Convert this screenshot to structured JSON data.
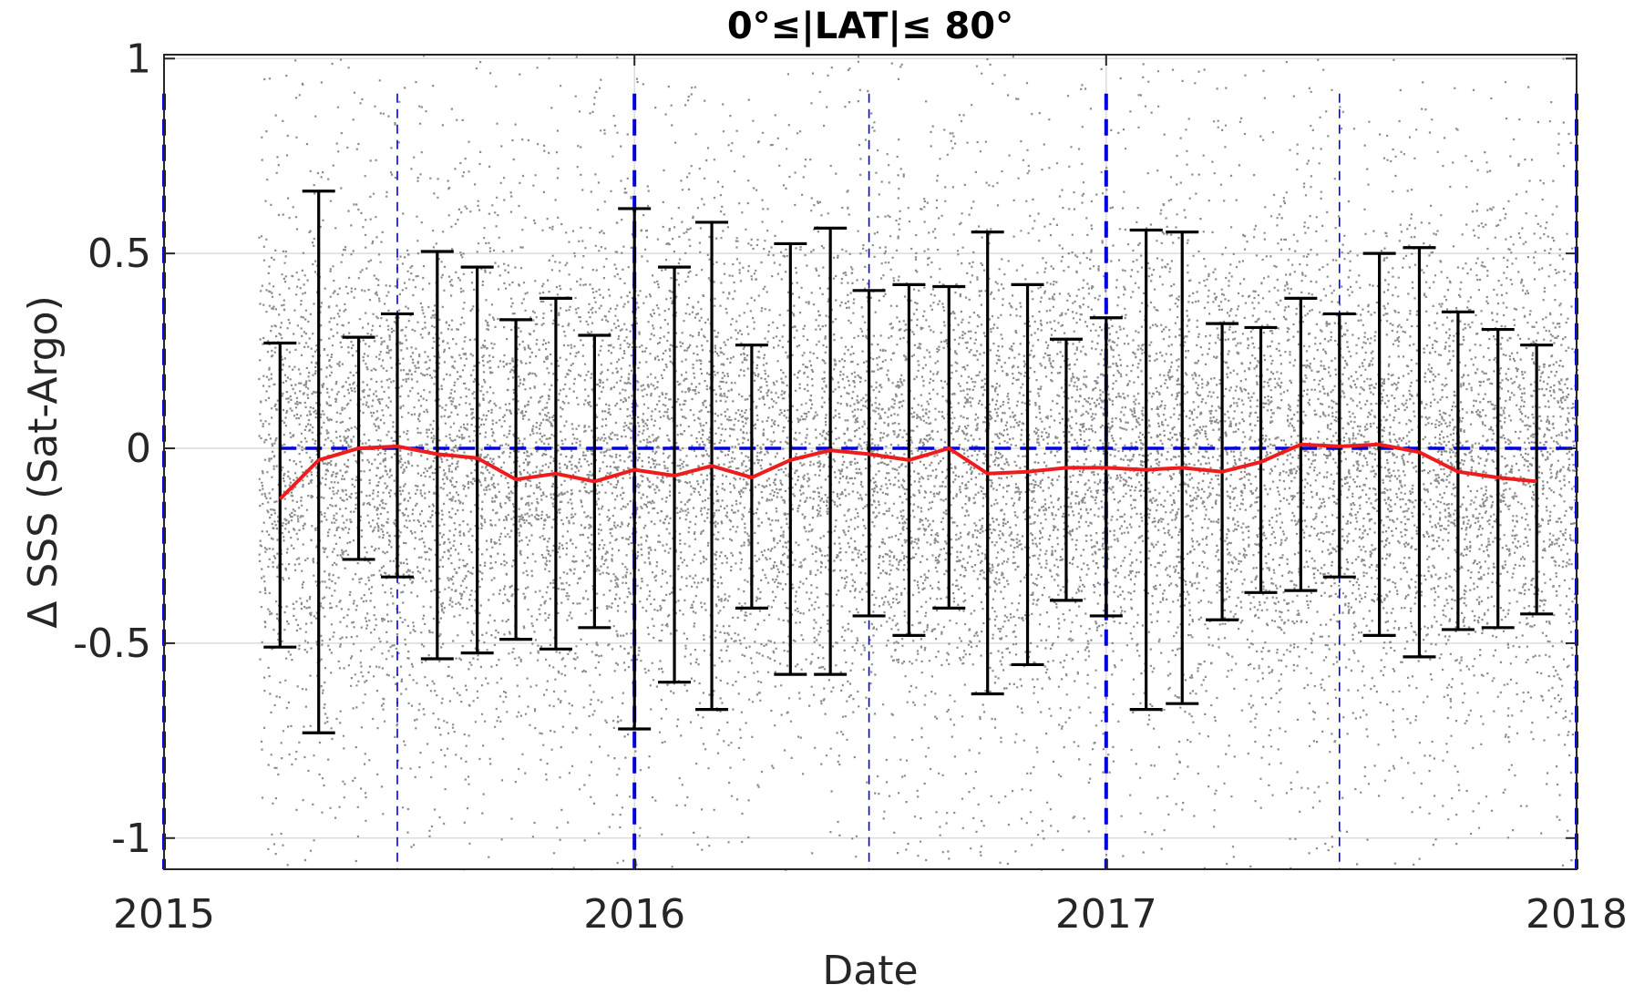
{
  "chart_data": {
    "type": "scatter",
    "title": "0°≤|LAT|≤ 80°",
    "xlabel": "Date",
    "ylabel": "Δ SSS (Sat-Argo)",
    "x_ticks": [
      "2015",
      "2016",
      "2017",
      "2018"
    ],
    "y_ticks": [
      "1",
      "0.5",
      "0",
      "-0.5",
      "-1"
    ],
    "y_tick_values": [
      1,
      0.5,
      0,
      -0.5,
      -1
    ],
    "xlim": [
      "2015-01-01",
      "2018-01-01"
    ],
    "ylim": [
      -1.08,
      1.01
    ],
    "grid": true,
    "scatter_x_range": [
      "2015-03-15",
      "2018-01-01"
    ],
    "scatter_color": "#808080",
    "mean_line_color": "#ee1c1c",
    "error_bar_color": "#000000",
    "reference_color": "#0000dd",
    "vertical_reference_lines": [
      {
        "x": "2015-01-01",
        "style": "thick-dash"
      },
      {
        "x": "2015-07-01",
        "style": "thin-dash"
      },
      {
        "x": "2016-01-01",
        "style": "thick-dash"
      },
      {
        "x": "2016-07-01",
        "style": "thin-dash"
      },
      {
        "x": "2017-01-01",
        "style": "thick-dash"
      },
      {
        "x": "2017-07-01",
        "style": "thin-dash"
      },
      {
        "x": "2018-01-01",
        "style": "thick-dash"
      }
    ],
    "horizontal_reference_line": {
      "y": 0,
      "from": "2015-04-01",
      "to": "2018-01-01"
    },
    "series": [
      {
        "type": "errorbar",
        "x": [
          "2015-04-01",
          "2015-05-01",
          "2015-06-01",
          "2015-07-01",
          "2015-08-01",
          "2015-09-01",
          "2015-10-01",
          "2015-11-01",
          "2015-12-01",
          "2016-01-01",
          "2016-02-01",
          "2016-03-01",
          "2016-04-01",
          "2016-05-01",
          "2016-06-01",
          "2016-07-01",
          "2016-08-01",
          "2016-09-01",
          "2016-10-01",
          "2016-11-01",
          "2016-12-01",
          "2017-01-01",
          "2017-02-01",
          "2017-03-01",
          "2017-04-01",
          "2017-05-01",
          "2017-06-01",
          "2017-07-01",
          "2017-08-01",
          "2017-09-01",
          "2017-10-01",
          "2017-11-01",
          "2017-12-01"
        ],
        "mean": [
          -0.13,
          -0.03,
          0.0,
          0.005,
          -0.015,
          -0.025,
          -0.08,
          -0.065,
          -0.085,
          -0.055,
          -0.07,
          -0.045,
          -0.075,
          -0.03,
          -0.005,
          -0.015,
          -0.03,
          0.0,
          -0.065,
          -0.06,
          -0.05,
          -0.05,
          -0.055,
          -0.05,
          -0.06,
          -0.035,
          0.01,
          0.005,
          0.01,
          -0.01,
          -0.06,
          -0.075,
          -0.085
        ],
        "upper": [
          0.27,
          0.66,
          0.285,
          0.345,
          0.505,
          0.465,
          0.33,
          0.385,
          0.29,
          0.615,
          0.465,
          0.58,
          0.265,
          0.525,
          0.565,
          0.405,
          0.42,
          0.415,
          0.555,
          0.42,
          0.28,
          0.335,
          0.56,
          0.555,
          0.32,
          0.31,
          0.385,
          0.345,
          0.5,
          0.515,
          0.35,
          0.305,
          0.265
        ],
        "lower": [
          -0.51,
          -0.73,
          -0.285,
          -0.33,
          -0.54,
          -0.525,
          -0.49,
          -0.515,
          -0.46,
          -0.72,
          -0.6,
          -0.67,
          -0.41,
          -0.58,
          -0.58,
          -0.43,
          -0.48,
          -0.41,
          -0.63,
          -0.555,
          -0.39,
          -0.43,
          -0.67,
          -0.655,
          -0.44,
          -0.37,
          -0.365,
          -0.33,
          -0.48,
          -0.535,
          -0.465,
          -0.46,
          -0.425
        ]
      }
    ]
  }
}
